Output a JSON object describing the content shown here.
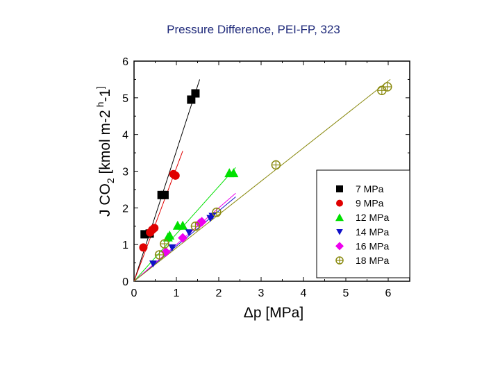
{
  "chart_data": {
    "type": "scatter",
    "title": "Pressure Difference, PEI-FP, 323",
    "xlabel": "Δp [MPa]",
    "ylabel": "J CO2 [kmol m-2 h-1]",
    "xlim": [
      0,
      6.5
    ],
    "ylim": [
      0,
      6
    ],
    "xticks": [
      "0",
      "1",
      "2",
      "3",
      "4",
      "5",
      "6"
    ],
    "yticks": [
      "0",
      "1",
      "2",
      "3",
      "4",
      "5",
      "6"
    ],
    "legend_position": "lower-right",
    "series": [
      {
        "name": "7 MPa",
        "marker": "square",
        "color": "#000000",
        "x": [
          0.25,
          0.37,
          0.65,
          0.72,
          1.35,
          1.45
        ],
        "y": [
          1.28,
          1.3,
          2.35,
          2.35,
          4.95,
          5.12
        ],
        "fit": [
          [
            0,
            0
          ],
          [
            1.55,
            5.5
          ]
        ]
      },
      {
        "name": "9 MPa",
        "marker": "circle",
        "color": "#e00000",
        "x": [
          0.22,
          0.38,
          0.43,
          0.48,
          0.93,
          0.98
        ],
        "y": [
          0.92,
          1.33,
          1.4,
          1.45,
          2.92,
          2.88
        ],
        "fit": [
          [
            0,
            0
          ],
          [
            1.15,
            3.55
          ]
        ]
      },
      {
        "name": "12 MPa",
        "marker": "triangle",
        "color": "#00e000",
        "x": [
          0.8,
          0.84,
          1.03,
          1.15,
          2.25,
          2.35
        ],
        "y": [
          1.2,
          1.25,
          1.52,
          1.52,
          2.95,
          2.95
        ],
        "fit": [
          [
            0,
            0
          ],
          [
            2.4,
            3.1
          ]
        ]
      },
      {
        "name": "14 MPa",
        "marker": "triangle-down",
        "color": "#1010c8",
        "x": [
          0.45,
          0.9,
          1.3,
          1.8,
          1.85
        ],
        "y": [
          0.48,
          0.92,
          1.33,
          1.72,
          1.78
        ],
        "fit": [
          [
            0,
            0
          ],
          [
            2.4,
            2.3
          ]
        ]
      },
      {
        "name": "16 MPa",
        "marker": "diamond",
        "color": "#ee00ee",
        "x": [
          0.75,
          1.15,
          1.55,
          1.6
        ],
        "y": [
          0.8,
          1.18,
          1.58,
          1.62
        ],
        "fit": [
          [
            0,
            0
          ],
          [
            2.4,
            2.4
          ]
        ]
      },
      {
        "name": "18 MPa",
        "marker": "circle-cross",
        "color": "#8a8a10",
        "x": [
          0.6,
          0.72,
          1.45,
          1.95,
          3.35,
          5.85,
          5.98
        ],
        "y": [
          0.72,
          1.02,
          1.5,
          1.88,
          3.17,
          5.2,
          5.3
        ],
        "fit": [
          [
            0,
            0
          ],
          [
            6.05,
            5.5
          ]
        ]
      }
    ]
  }
}
